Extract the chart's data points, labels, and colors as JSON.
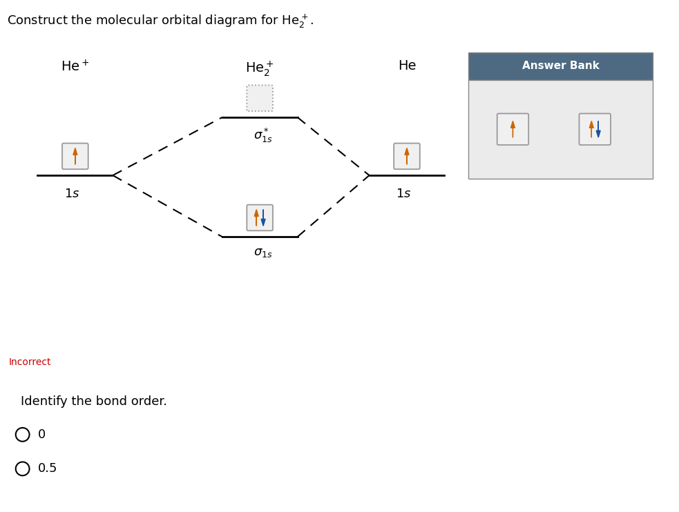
{
  "bg_color": "#ffffff",
  "border_color": "#cc0000",
  "incorrect_color": "#cc0000",
  "incorrect_text": "Incorrect",
  "bond_order_text": "Identify the bond order.",
  "radio_options": [
    "0",
    "0.5"
  ],
  "he_plus_label": "He",
  "he_plus_sup": "+",
  "he2_plus_label": "He",
  "he2_plus_sub": "2",
  "he2_plus_sup": "+",
  "he_label": "He",
  "answer_bank_title": "Answer Bank",
  "answer_bank_bg": "#4d6a82",
  "answer_bank_body_bg": "#ebebeb",
  "arrow_up_color": "#cc6600",
  "arrow_down_color": "#1a52a0",
  "box_bg": "#f0f0f0",
  "box_border": "#aaaaaa"
}
